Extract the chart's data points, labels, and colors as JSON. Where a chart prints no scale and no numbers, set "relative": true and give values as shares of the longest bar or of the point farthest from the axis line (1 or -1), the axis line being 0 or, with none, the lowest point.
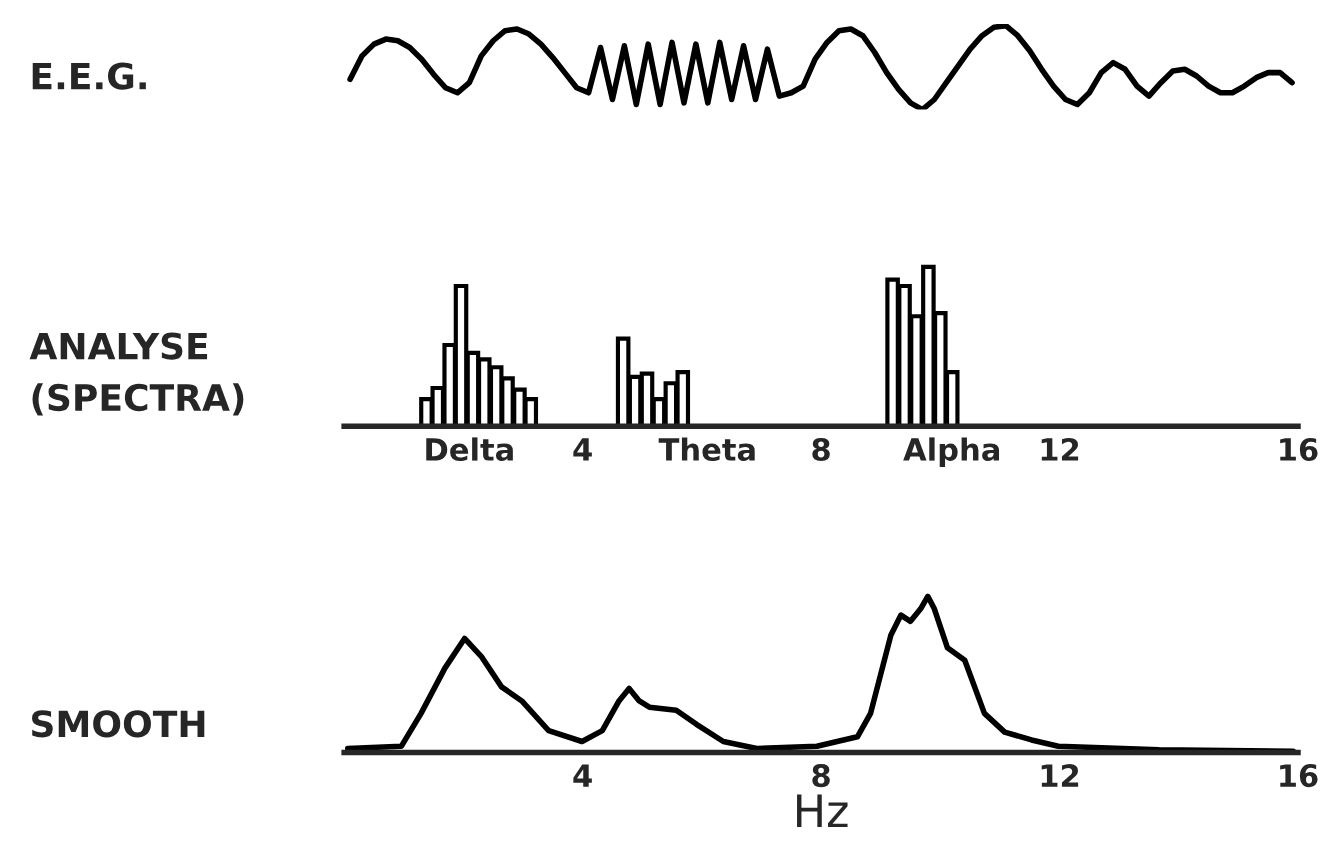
{
  "chart_data": [
    {
      "type": "line",
      "title": "E.E.G.",
      "relative": true,
      "categories": [
        null,
        null,
        null,
        null,
        null,
        null,
        null,
        null,
        null,
        null,
        null,
        null,
        null,
        null,
        null,
        null,
        null,
        null,
        null,
        null,
        null,
        null,
        null,
        null,
        null,
        null,
        null,
        null,
        null,
        null,
        null,
        null,
        null,
        null,
        null,
        null,
        null,
        null,
        null,
        null,
        null,
        null,
        null,
        null,
        null,
        null,
        null,
        null,
        null,
        null,
        null,
        null,
        null,
        null,
        null,
        null,
        null,
        null,
        null,
        null,
        null,
        null,
        null,
        null,
        null,
        null,
        null,
        null,
        null,
        null,
        null,
        null,
        null,
        null,
        null,
        null,
        null,
        null,
        null,
        null
      ],
      "series": [
        {
          "color": "#000000",
          "values": [
            0.36,
            0.64,
            0.78,
            0.84,
            0.82,
            0.74,
            0.6,
            0.42,
            0.26,
            0.2,
            0.32,
            0.64,
            0.82,
            0.94,
            0.96,
            0.9,
            0.78,
            0.62,
            0.44,
            0.26,
            0.2,
            0.74,
            0.12,
            0.76,
            0.06,
            0.78,
            0.06,
            0.8,
            0.08,
            0.78,
            0.08,
            0.8,
            0.12,
            0.76,
            0.12,
            0.72,
            0.16,
            0.2,
            0.28,
            0.6,
            0.8,
            0.94,
            0.96,
            0.88,
            0.68,
            0.44,
            0.24,
            0.08,
            0,
            0.12,
            0.32,
            0.52,
            0.72,
            0.88,
            0.98,
            1,
            0.88,
            0.7,
            0.48,
            0.28,
            0.12,
            0.06,
            0.2,
            0.44,
            0.56,
            0.48,
            0.28,
            0.16,
            0.32,
            0.46,
            0.48,
            0.4,
            0.28,
            0.2,
            0.2,
            0.28,
            0.38,
            0.44,
            0.44,
            0.32
          ]
        }
      ]
    },
    {
      "type": "bar",
      "title": "ANALYSE\n(SPECTRA)",
      "relative": true,
      "xlim": [
        0,
        16
      ],
      "xticks": [
        {
          "value": 2.1,
          "label": "Delta"
        },
        4,
        {
          "value": 6.1,
          "label": "Theta"
        },
        8,
        {
          "value": 10.2,
          "label": "Alpha"
        },
        12,
        16
      ],
      "series": [
        {
          "color": "#000000",
          "x": [
            1.38,
            1.57,
            1.77,
            1.96,
            2.16,
            2.35,
            2.55,
            2.74,
            2.94,
            3.13,
            4.68,
            4.88,
            5.08,
            5.28,
            5.48,
            5.68,
            9.2,
            9.4,
            9.6,
            9.8,
            10.0,
            10.2
          ],
          "values": [
            0.17,
            0.24,
            0.51,
            0.88,
            0.46,
            0.42,
            0.37,
            0.3,
            0.23,
            0.17,
            0.55,
            0.31,
            0.33,
            0.17,
            0.27,
            0.34,
            0.92,
            0.88,
            0.69,
            1.0,
            0.71,
            0.34
          ]
        }
      ]
    },
    {
      "type": "line",
      "title": "SMOOTH",
      "xlabel": "Hz",
      "relative": true,
      "xlim": [
        0,
        16
      ],
      "xticks": [
        4,
        8,
        12,
        16
      ],
      "series": [
        {
          "color": "#000000",
          "x": [
            0.06,
            0.96,
            1.29,
            1.69,
            2.02,
            2.31,
            2.64,
            2.98,
            3.43,
            3.99,
            4.33,
            4.61,
            4.78,
            4.95,
            5.12,
            5.57,
            5.91,
            6.36,
            6.92,
            7.93,
            8.61,
            8.83,
            9.0,
            9.17,
            9.34,
            9.5,
            9.67,
            9.79,
            9.9,
            10.12,
            10.41,
            10.74,
            11.08,
            11.53,
            11.98,
            13.67,
            15.92
          ],
          "values": [
            0.025,
            0.04,
            0.25,
            0.54,
            0.73,
            0.61,
            0.42,
            0.33,
            0.14,
            0.07,
            0.14,
            0.33,
            0.41,
            0.33,
            0.29,
            0.27,
            0.18,
            0.07,
            0.025,
            0.04,
            0.1,
            0.25,
            0.5,
            0.75,
            0.88,
            0.84,
            0.92,
            1.0,
            0.92,
            0.67,
            0.59,
            0.25,
            0.13,
            0.08,
            0.04,
            0.017,
            0.008
          ]
        }
      ]
    }
  ]
}
